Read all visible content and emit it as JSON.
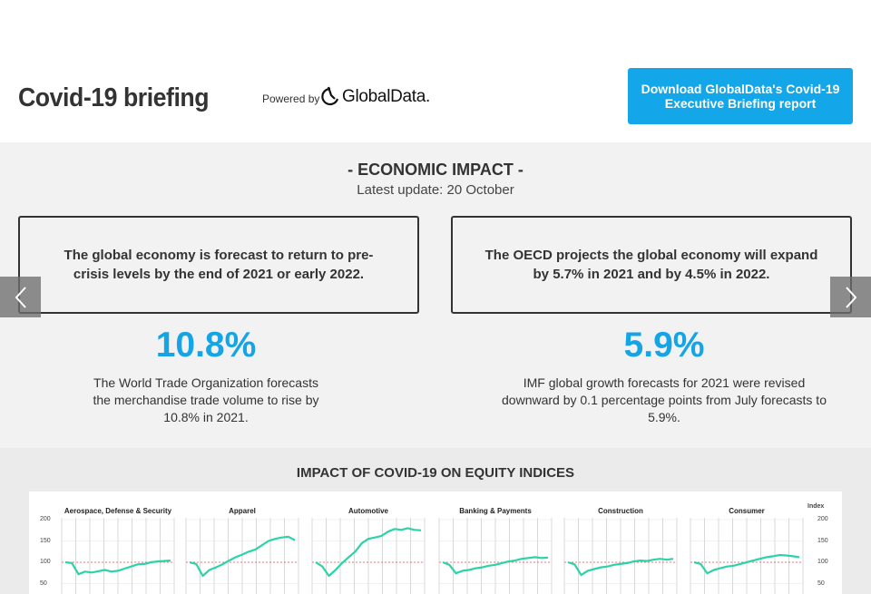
{
  "header": {
    "title": "Covid-19 briefing",
    "powered_by": "Powered by",
    "logo_text": "GlobalData.",
    "download_button": "Download GlobalData's Covid-19 Executive Briefing report"
  },
  "economic_impact": {
    "title": "- ECONOMIC IMPACT -",
    "update": "Latest update: 20 October",
    "cards": [
      {
        "text": "The global economy is forecast to return to pre-crisis levels by the end of 2021 or early 2022.",
        "stat": "10.8%",
        "description": "The World Trade Organization forecasts the merchandise trade volume to rise by 10.8% in 2021."
      },
      {
        "text": "The OECD projects the global economy will expand by 5.7% in 2021 and by 4.5% in 2022.",
        "stat": "5.9%",
        "description": "IMF global growth forecasts for 2021 were revised downward by 0.1 percentage points from July forecasts to 5.9%."
      }
    ]
  },
  "equity": {
    "title": "IMPACT OF COVID-19 ON EQUITY INDICES",
    "index_label": "Index",
    "y_ticks": [
      200,
      150,
      100,
      50
    ],
    "baseline": 100,
    "line_color": "#2dd3a8",
    "baseline_color": "#e05555",
    "sectors": [
      {
        "name": "Aerospace, Defense & Security",
        "values": [
          100,
          98,
          72,
          78,
          76,
          79,
          82,
          78,
          80,
          85,
          90,
          95,
          96,
          100,
          102,
          103,
          104
        ]
      },
      {
        "name": "Apparel",
        "values": [
          100,
          96,
          68,
          82,
          88,
          95,
          104,
          112,
          118,
          125,
          130,
          140,
          150,
          155,
          158,
          160,
          152
        ]
      },
      {
        "name": "Automotive",
        "values": [
          100,
          90,
          68,
          82,
          98,
          112,
          125,
          145,
          155,
          158,
          162,
          172,
          178,
          176,
          180,
          176,
          175
        ]
      },
      {
        "name": "Banking & Payments",
        "values": [
          100,
          94,
          74,
          80,
          82,
          86,
          88,
          92,
          94,
          98,
          102,
          104,
          108,
          110,
          112,
          110,
          111
        ]
      },
      {
        "name": "Construction",
        "values": [
          100,
          95,
          70,
          80,
          84,
          88,
          90,
          94,
          96,
          98,
          102,
          104,
          103,
          106,
          108,
          106,
          108
        ]
      },
      {
        "name": "Consumer",
        "values": [
          100,
          96,
          74,
          82,
          86,
          90,
          92,
          96,
          100,
          104,
          108,
          112,
          114,
          117,
          116,
          114,
          112
        ]
      }
    ]
  }
}
